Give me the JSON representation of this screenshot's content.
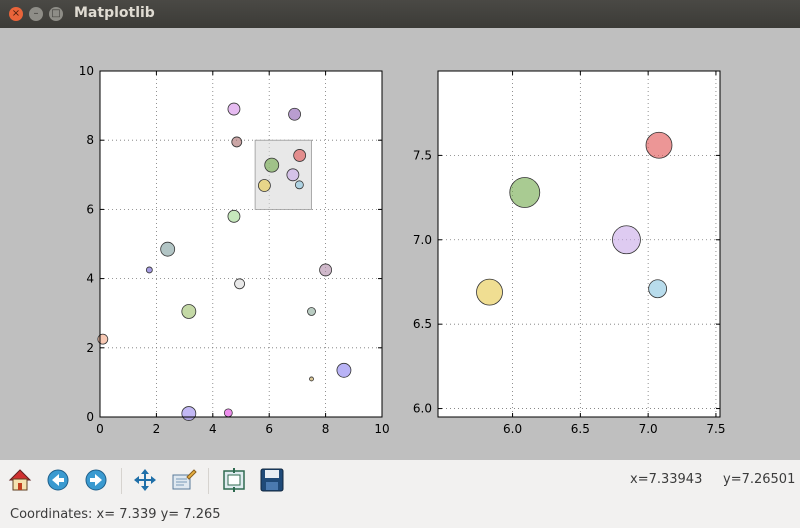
{
  "window": {
    "title": "Matplotlib"
  },
  "toolbar": {
    "buttons": [
      {
        "name": "home-button",
        "icon": "home-icon"
      },
      {
        "name": "back-button",
        "icon": "back-arrow-icon"
      },
      {
        "name": "forward-button",
        "icon": "forward-arrow-icon"
      },
      {
        "name": "pan-button",
        "icon": "move-icon"
      },
      {
        "name": "zoom-button",
        "icon": "zoom-rect-icon"
      },
      {
        "name": "subplots-button",
        "icon": "subplots-icon"
      },
      {
        "name": "save-button",
        "icon": "save-icon"
      }
    ],
    "coords": "x=7.33943     y=7.26501"
  },
  "status": {
    "text": "Coordinates: x= 7.339 y= 7.265"
  },
  "chart_data": [
    {
      "type": "scatter",
      "xlim": [
        0,
        10
      ],
      "ylim": [
        0,
        10
      ],
      "xticks": [
        "0",
        "2",
        "4",
        "6",
        "8",
        "10"
      ],
      "yticks": [
        "0",
        "2",
        "4",
        "6",
        "8",
        "10"
      ],
      "grid": true,
      "selection": {
        "x": [
          5.5,
          7.5
        ],
        "y": [
          6,
          8
        ]
      },
      "points": [
        {
          "x": 0.1,
          "y": 2.25,
          "r": 5,
          "color": "#f4a582"
        },
        {
          "x": 1.75,
          "y": 4.25,
          "r": 3,
          "color": "#6a5acd"
        },
        {
          "x": 2.4,
          "y": 4.85,
          "r": 7,
          "color": "#7f9f9f"
        },
        {
          "x": 3.15,
          "y": 3.05,
          "r": 7,
          "color": "#9cbf6a"
        },
        {
          "x": 3.15,
          "y": 0.1,
          "r": 7,
          "color": "#9a88ee"
        },
        {
          "x": 4.55,
          "y": 0.12,
          "r": 4,
          "color": "#e040e0"
        },
        {
          "x": 4.75,
          "y": 8.9,
          "r": 6,
          "color": "#d58ee8"
        },
        {
          "x": 4.85,
          "y": 7.95,
          "r": 5,
          "color": "#a86a6a"
        },
        {
          "x": 4.75,
          "y": 5.8,
          "r": 6,
          "color": "#a0d890"
        },
        {
          "x": 4.95,
          "y": 3.85,
          "r": 5,
          "color": "#d8d8d8"
        },
        {
          "x": 5.83,
          "y": 6.69,
          "r": 6,
          "color": "#e6c84a"
        },
        {
          "x": 6.09,
          "y": 7.28,
          "r": 7,
          "color": "#6fa84a"
        },
        {
          "x": 6.84,
          "y": 7.0,
          "r": 6,
          "color": "#c8a8e8"
        },
        {
          "x": 7.08,
          "y": 7.56,
          "r": 6,
          "color": "#e05050"
        },
        {
          "x": 7.07,
          "y": 6.71,
          "r": 4,
          "color": "#88c4e0"
        },
        {
          "x": 6.9,
          "y": 8.75,
          "r": 6,
          "color": "#8a5cb0"
        },
        {
          "x": 7.5,
          "y": 3.05,
          "r": 4,
          "color": "#8aaa9a"
        },
        {
          "x": 7.5,
          "y": 1.1,
          "r": 2,
          "color": "#c0a050"
        },
        {
          "x": 8.0,
          "y": 4.25,
          "r": 6,
          "color": "#b08aa8"
        },
        {
          "x": 8.65,
          "y": 1.35,
          "r": 7,
          "color": "#8a80f0"
        }
      ]
    },
    {
      "type": "scatter",
      "xlim": [
        5.45,
        7.53
      ],
      "ylim": [
        5.95,
        8.0
      ],
      "xticks": [
        6.0,
        6.5,
        7.0,
        7.5
      ],
      "yticks": [
        6.0,
        6.5,
        7.0,
        7.5
      ],
      "xtick_labels": [
        "6.0",
        "6.5",
        "7.0",
        "7.5"
      ],
      "ytick_labels": [
        "6.0",
        "6.5",
        "7.0",
        "7.5"
      ],
      "grid": true,
      "points": [
        {
          "x": 5.83,
          "y": 6.69,
          "r": 13,
          "color": "#e6c84a"
        },
        {
          "x": 6.09,
          "y": 7.28,
          "r": 15,
          "color": "#6fa84a"
        },
        {
          "x": 6.84,
          "y": 7.0,
          "r": 14,
          "color": "#c8a8e8"
        },
        {
          "x": 7.08,
          "y": 7.56,
          "r": 13,
          "color": "#e05050"
        },
        {
          "x": 7.07,
          "y": 6.71,
          "r": 9,
          "color": "#88c4e0"
        }
      ]
    }
  ]
}
